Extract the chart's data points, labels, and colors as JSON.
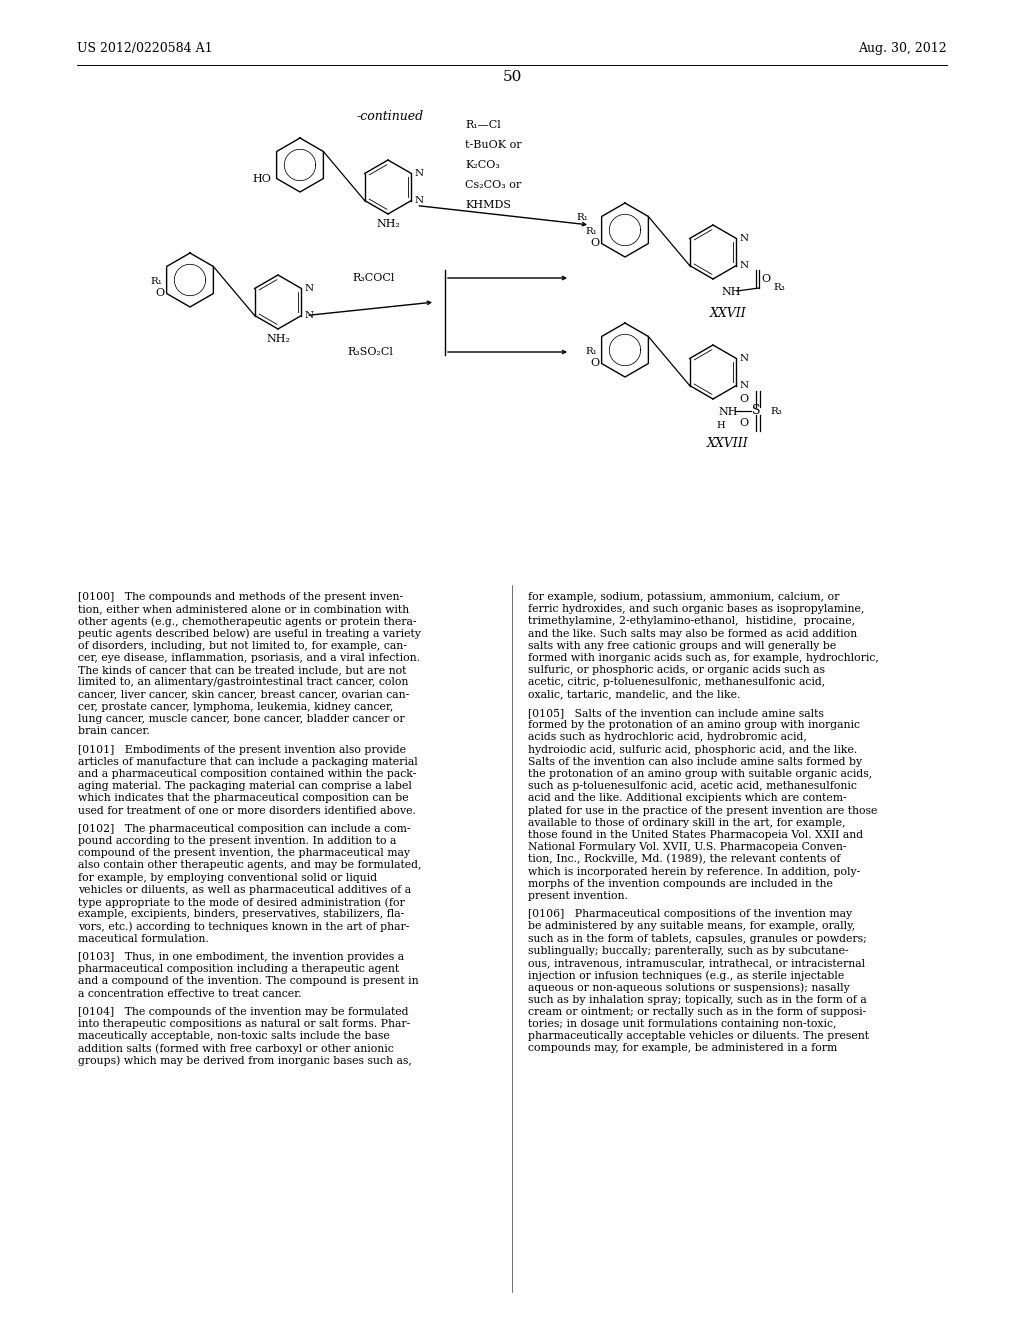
{
  "background_color": "#ffffff",
  "header_left": "US 2012/0220584 A1",
  "header_right": "Aug. 30, 2012",
  "page_number": "50",
  "continued_label": "-continued",
  "reagent_top": [
    "R₁—Cl",
    "t-BuOK or",
    "K₂CO₃",
    "Cs₂CO₃ or",
    "KHMDS"
  ],
  "reagent_mid": "R₃COCl",
  "reagent_bot": "R₃SO₂Cl",
  "xxvii_label": "XXVII",
  "xxviii_label": "XXVIII",
  "col1_lines": [
    "[0100]   The compounds and methods of the present inven-",
    "tion, either when administered alone or in combination with",
    "other agents (e.g., chemotherapeutic agents or protein thera-",
    "peutic agents described below) are useful in treating a variety",
    "of disorders, including, but not limited to, for example, can-",
    "cer, eye disease, inflammation, psoriasis, and a viral infection.",
    "The kinds of cancer that can be treated include, but are not",
    "limited to, an alimentary/gastrointestinal tract cancer, colon",
    "cancer, liver cancer, skin cancer, breast cancer, ovarian can-",
    "cer, prostate cancer, lymphoma, leukemia, kidney cancer,",
    "lung cancer, muscle cancer, bone cancer, bladder cancer or",
    "brain cancer.",
    "",
    "[0101]   Embodiments of the present invention also provide",
    "articles of manufacture that can include a packaging material",
    "and a pharmaceutical composition contained within the pack-",
    "aging material. The packaging material can comprise a label",
    "which indicates that the pharmaceutical composition can be",
    "used for treatment of one or more disorders identified above.",
    "",
    "[0102]   The pharmaceutical composition can include a com-",
    "pound according to the present invention. In addition to a",
    "compound of the present invention, the pharmaceutical may",
    "also contain other therapeutic agents, and may be formulated,",
    "for example, by employing conventional solid or liquid",
    "vehicles or diluents, as well as pharmaceutical additives of a",
    "type appropriate to the mode of desired administration (for",
    "example, excipients, binders, preservatives, stabilizers, fla-",
    "vors, etc.) according to techniques known in the art of phar-",
    "maceutical formulation.",
    "",
    "[0103]   Thus, in one embodiment, the invention provides a",
    "pharmaceutical composition including a therapeutic agent",
    "and a compound of the invention. The compound is present in",
    "a concentration effective to treat cancer.",
    "",
    "[0104]   The compounds of the invention may be formulated",
    "into therapeutic compositions as natural or salt forms. Phar-",
    "maceutically acceptable, non-toxic salts include the base",
    "addition salts (formed with free carboxyl or other anionic",
    "groups) which may be derived from inorganic bases such as,"
  ],
  "col2_lines": [
    "for example, sodium, potassium, ammonium, calcium, or",
    "ferric hydroxides, and such organic bases as isopropylamine,",
    "trimethylamine, 2-ethylamino-ethanol,  histidine,  procaine,",
    "and the like. Such salts may also be formed as acid addition",
    "salts with any free cationic groups and will generally be",
    "formed with inorganic acids such as, for example, hydrochloric,",
    "sulfuric, or phosphoric acids, or organic acids such as",
    "acetic, citric, p-toluenesulfonic, methanesulfonic acid,",
    "oxalic, tartaric, mandelic, and the like.",
    "",
    "[0105]   Salts of the invention can include amine salts",
    "formed by the protonation of an amino group with inorganic",
    "acids such as hydrochloric acid, hydrobromic acid,",
    "hydroiodic acid, sulfuric acid, phosphoric acid, and the like.",
    "Salts of the invention can also include amine salts formed by",
    "the protonation of an amino group with suitable organic acids,",
    "such as p-toluenesulfonic acid, acetic acid, methanesulfonic",
    "acid and the like. Additional excipients which are contem-",
    "plated for use in the practice of the present invention are those",
    "available to those of ordinary skill in the art, for example,",
    "those found in the United States Pharmacopeia Vol. XXII and",
    "National Formulary Vol. XVII, U.S. Pharmacopeia Conven-",
    "tion, Inc., Rockville, Md. (1989), the relevant contents of",
    "which is incorporated herein by reference. In addition, poly-",
    "morphs of the invention compounds are included in the",
    "present invention.",
    "",
    "[0106]   Pharmaceutical compositions of the invention may",
    "be administered by any suitable means, for example, orally,",
    "such as in the form of tablets, capsules, granules or powders;",
    "sublingually; buccally; parenterally, such as by subcutane-",
    "ous, intravenous, intramuscular, intrathecal, or intracisternal",
    "injection or infusion techniques (e.g., as sterile injectable",
    "aqueous or non-aqueous solutions or suspensions); nasally",
    "such as by inhalation spray; topically, such as in the form of a",
    "cream or ointment; or rectally such as in the form of supposi-",
    "tories; in dosage unit formulations containing non-toxic,",
    "pharmaceutically acceptable vehicles or diluents. The present",
    "compounds may, for example, be administered in a form"
  ]
}
